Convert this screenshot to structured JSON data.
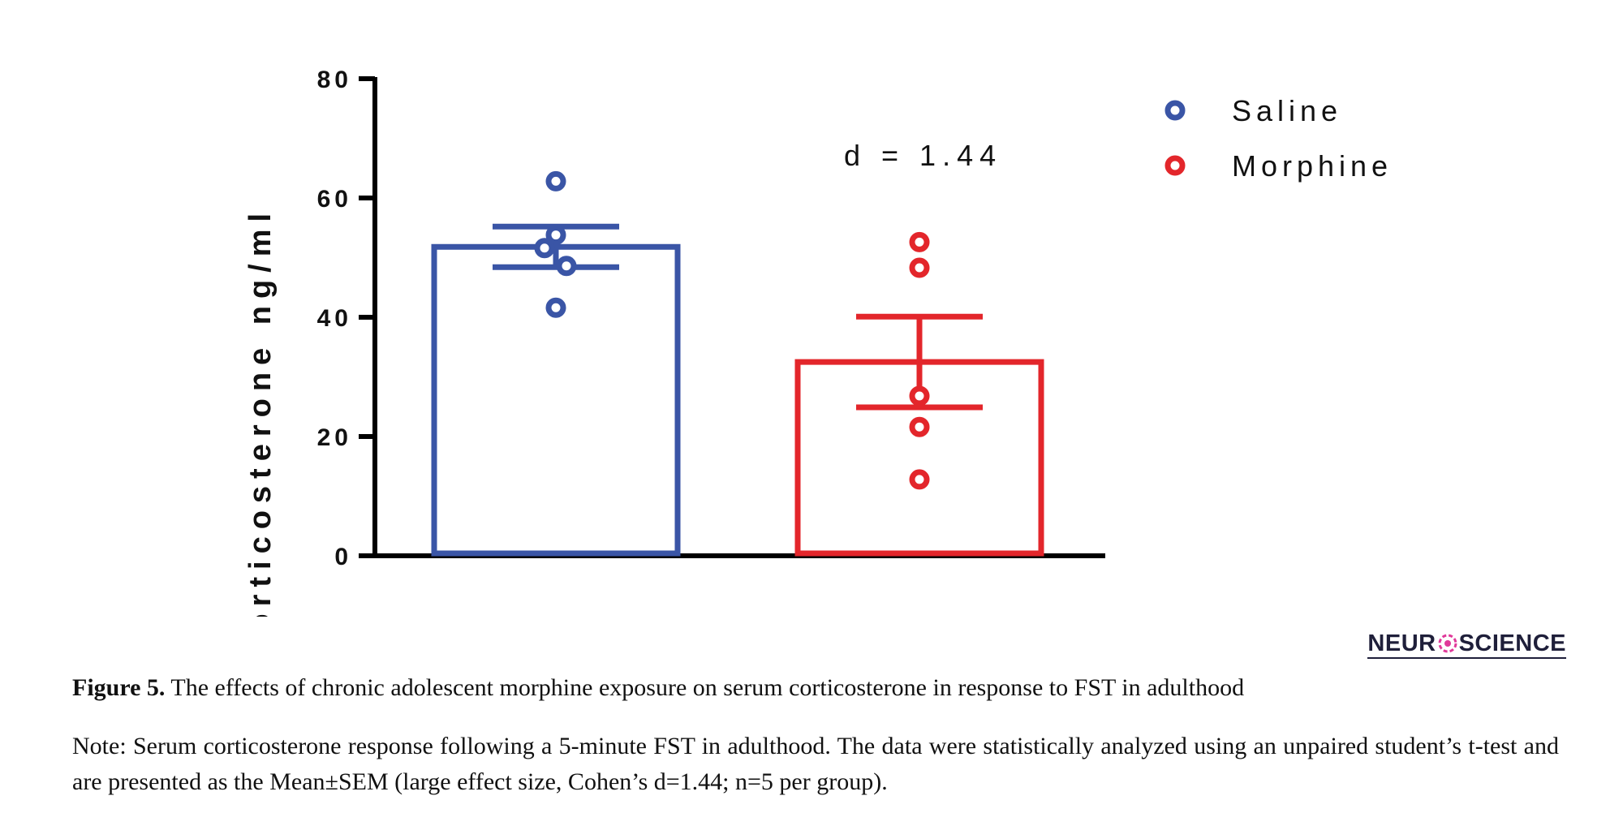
{
  "chart_data": {
    "type": "bar",
    "categories": [
      "Saline",
      "Morphine"
    ],
    "values": [
      51.8,
      32.5
    ],
    "error": [
      3.4,
      7.6
    ],
    "points": [
      [
        62.8,
        53.8,
        51.6,
        48.6,
        41.6
      ],
      [
        52.6,
        48.3,
        26.8,
        21.6,
        12.8
      ]
    ],
    "colors": [
      "#3a55a6",
      "#e3262b"
    ],
    "ylabel": "Corticosterone ng/ml",
    "ylim": [
      0,
      80
    ],
    "yticks": [
      0,
      20,
      40,
      60,
      80
    ],
    "ytick_labels": [
      "0",
      "20",
      "40",
      "60",
      "80"
    ],
    "legend": [
      "Saline",
      "Morphine"
    ],
    "legend_position": "top-right",
    "annotation": "d = 1.44",
    "grid": false
  },
  "logo": {
    "left": "NEUR",
    "right": "SCIENCE"
  },
  "caption": {
    "label": "Figure 5.",
    "text": " The effects of chronic adolescent morphine exposure on serum corticosterone in response to FST in adulthood"
  },
  "note": "Note: Serum corticosterone response following a 5-minute FST in adulthood. The data were statistically analyzed using an unpaired student’s t-test and are presented as the Mean±SEM (large effect size, Cohen’s d=1.44; n=5 per group)."
}
